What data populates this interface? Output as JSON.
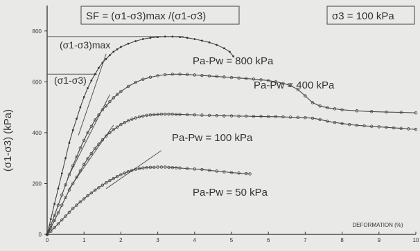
{
  "chart_data": {
    "type": "line",
    "title": "",
    "xlabel": "DEFORMATION (%)",
    "ylabel": "(σ1-σ3) (kPa)",
    "xlim": [
      0,
      10
    ],
    "ylim": [
      0,
      900
    ],
    "xticks": [
      0,
      1,
      2,
      3,
      4,
      5,
      6,
      7,
      8,
      9,
      10
    ],
    "yticks": [
      0,
      200,
      400,
      600,
      800
    ],
    "grid": false,
    "legend": "none",
    "annotations": {
      "formula": "SF = (σ1-σ3)max /(σ1-σ3)",
      "confining": "σ3 = 100 kPa",
      "max_label": "(σ1-σ3)max",
      "dev_label": "(σ1-σ3)"
    },
    "series": [
      {
        "name": "Pa-Pw = 800 kPa",
        "x": [
          0,
          0.1,
          0.2,
          0.3,
          0.4,
          0.5,
          0.6,
          0.7,
          0.8,
          0.9,
          1.0,
          1.1,
          1.2,
          1.3,
          1.4,
          1.5,
          1.6,
          1.7,
          1.8,
          1.9,
          2.0,
          2.2,
          2.4,
          2.6,
          2.8,
          3.0,
          3.2,
          3.4,
          3.6,
          3.8,
          4.0,
          4.2,
          4.4,
          4.6,
          4.8,
          4.95,
          5.05
        ],
        "y": [
          0,
          60,
          120,
          180,
          240,
          300,
          360,
          410,
          455,
          500,
          540,
          575,
          605,
          630,
          655,
          675,
          690,
          705,
          718,
          728,
          737,
          750,
          760,
          768,
          773,
          776,
          778,
          778,
          776,
          773,
          768,
          762,
          755,
          745,
          732,
          718,
          700
        ]
      },
      {
        "name": "Pa-Pw = 400 kPa",
        "x": [
          0,
          0.1,
          0.2,
          0.3,
          0.4,
          0.5,
          0.6,
          0.7,
          0.8,
          0.9,
          1.0,
          1.1,
          1.2,
          1.3,
          1.4,
          1.5,
          1.6,
          1.7,
          1.8,
          1.9,
          2.0,
          2.2,
          2.4,
          2.6,
          2.8,
          3.0,
          3.2,
          3.4,
          3.6,
          3.8,
          4.0,
          4.2,
          4.4,
          4.6,
          4.8,
          5.0,
          5.2,
          5.4,
          5.6,
          5.8,
          6.0,
          6.2,
          6.4,
          6.6,
          6.8,
          7.0,
          7.2,
          7.4,
          7.6,
          7.8,
          8.0,
          8.4,
          8.8,
          9.2,
          9.6,
          10.0
        ],
        "y": [
          0,
          35,
          75,
          115,
          155,
          195,
          235,
          270,
          305,
          340,
          370,
          400,
          425,
          450,
          470,
          490,
          505,
          522,
          537,
          550,
          562,
          582,
          598,
          610,
          618,
          624,
          628,
          630,
          630,
          629,
          627,
          625,
          623,
          621,
          619,
          617,
          615,
          613,
          611,
          608,
          605,
          600,
          594,
          585,
          570,
          545,
          518,
          505,
          498,
          494,
          490,
          486,
          483,
          481,
          480,
          478
        ]
      },
      {
        "name": "Pa-Pw = 100 kPa",
        "x": [
          0,
          0.1,
          0.2,
          0.3,
          0.4,
          0.5,
          0.6,
          0.7,
          0.8,
          0.9,
          1.0,
          1.1,
          1.2,
          1.3,
          1.4,
          1.5,
          1.6,
          1.7,
          1.8,
          1.9,
          2.0,
          2.1,
          2.2,
          2.3,
          2.4,
          2.5,
          2.6,
          2.7,
          2.8,
          2.9,
          3.0,
          3.1,
          3.2,
          3.3,
          3.4,
          3.5,
          3.6,
          3.8,
          4.0,
          4.2,
          4.4,
          4.6,
          4.8,
          5.0,
          5.2,
          5.4,
          5.6,
          5.8,
          6.0,
          6.2,
          6.4,
          6.6,
          6.8,
          7.0,
          7.2,
          7.4,
          7.6,
          7.8,
          8.0,
          8.2,
          8.4,
          8.6,
          8.8,
          9.0,
          9.2,
          9.4,
          9.6,
          9.8,
          10.0
        ],
        "y": [
          0,
          25,
          55,
          85,
          115,
          145,
          175,
          200,
          225,
          250,
          275,
          298,
          318,
          338,
          355,
          372,
          387,
          400,
          412,
          422,
          432,
          440,
          447,
          453,
          458,
          462,
          465,
          468,
          470,
          471,
          472,
          473,
          473,
          473,
          473,
          472,
          472,
          471,
          470,
          469,
          468,
          467,
          466,
          466,
          465,
          465,
          464,
          464,
          463,
          463,
          462,
          461,
          460,
          459,
          457,
          452,
          445,
          440,
          436,
          432,
          429,
          427,
          425,
          423,
          421,
          419,
          417,
          415,
          413
        ]
      },
      {
        "name": "Pa-Pw = 50 kPa",
        "x": [
          0,
          0.1,
          0.2,
          0.3,
          0.4,
          0.5,
          0.6,
          0.7,
          0.8,
          0.9,
          1.0,
          1.1,
          1.2,
          1.3,
          1.4,
          1.5,
          1.6,
          1.7,
          1.8,
          1.9,
          2.0,
          2.1,
          2.2,
          2.3,
          2.4,
          2.5,
          2.6,
          2.7,
          2.8,
          2.9,
          3.0,
          3.1,
          3.2,
          3.3,
          3.4,
          3.5,
          3.6,
          3.8,
          4.0,
          4.2,
          4.4,
          4.6,
          4.8,
          5.0,
          5.2,
          5.4,
          5.5
        ],
        "y": [
          0,
          12,
          27,
          42,
          57,
          72,
          87,
          102,
          115,
          128,
          140,
          152,
          163,
          174,
          184,
          194,
          203,
          212,
          220,
          228,
          235,
          241,
          247,
          252,
          256,
          259,
          261,
          263,
          264,
          264,
          265,
          265,
          265,
          264,
          263,
          262,
          261,
          259,
          257,
          255,
          252,
          249,
          246,
          243,
          241,
          239,
          238
        ]
      }
    ],
    "tangents": [
      {
        "x": [
          0.85,
          1.6
        ],
        "y": [
          390,
          710
        ]
      },
      {
        "x": [
          0.55,
          1.7
        ],
        "y": [
          220,
          550
        ]
      },
      {
        "x": [
          0.6,
          1.8
        ],
        "y": [
          180,
          430
        ]
      },
      {
        "x": [
          1.6,
          3.1
        ],
        "y": [
          180,
          330
        ]
      }
    ]
  }
}
